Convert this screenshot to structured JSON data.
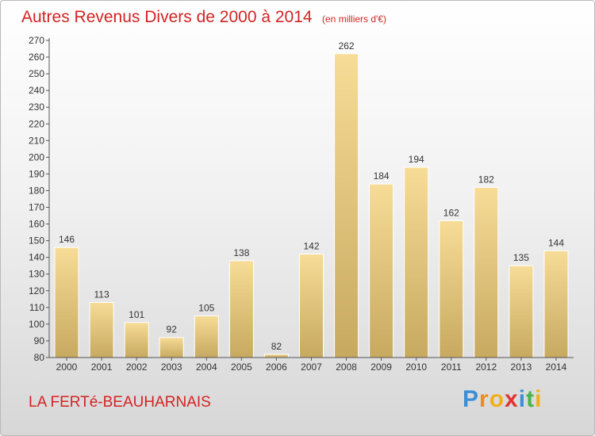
{
  "header": {
    "title": "Autres Revenus Divers de 2000 à 2014",
    "unit": "(en milliers d'€)"
  },
  "location": "LA FERTé-BEAUHARNAIS",
  "brand": {
    "letters": [
      "P",
      "r",
      "o",
      "x",
      "i",
      "t",
      "i"
    ],
    "colors": [
      "#3c8fd6",
      "#f08a1c",
      "#f0b01c",
      "#e03232",
      "#3c8fd6",
      "#49b24a",
      "#f0b01c"
    ]
  },
  "colors": {
    "title": "#d22323",
    "bar_light": "#f7dc97",
    "bar_dark": "#c7a960"
  },
  "chart_data": {
    "type": "bar",
    "title": "Autres Revenus Divers de 2000 à 2014",
    "xlabel": "",
    "ylabel": "",
    "categories": [
      "2000",
      "2001",
      "2002",
      "2003",
      "2004",
      "2005",
      "2006",
      "2007",
      "2008",
      "2009",
      "2010",
      "2011",
      "2012",
      "2013",
      "2014"
    ],
    "values": [
      146,
      113,
      101,
      92,
      105,
      138,
      82,
      142,
      262,
      184,
      194,
      162,
      182,
      135,
      144
    ],
    "ylim": [
      80,
      270
    ],
    "ytick_step": 10,
    "grid": false,
    "legend": "none"
  }
}
